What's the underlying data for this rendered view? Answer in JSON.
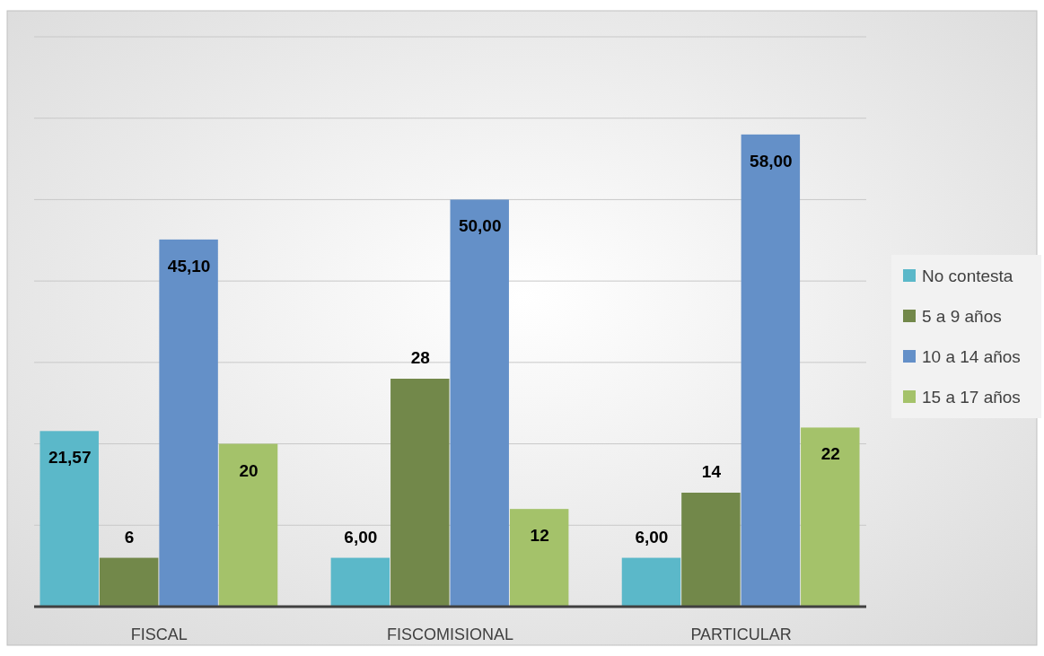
{
  "chart_data": {
    "type": "bar",
    "categories": [
      "FISCAL",
      "FISCOMISIONAL",
      "PARTICULAR"
    ],
    "series": [
      {
        "name": "No contesta",
        "color": "#5bb8c9",
        "values": [
          21.57,
          6.0,
          6.0
        ],
        "value_labels": [
          "21,57",
          "6,00",
          "6,00"
        ]
      },
      {
        "name": "5 a 9 años",
        "color": "#72884a",
        "values": [
          6,
          28,
          14
        ],
        "value_labels": [
          "6",
          "28",
          "14"
        ]
      },
      {
        "name": "10 a 14 años",
        "color": "#6490c8",
        "values": [
          45.1,
          50.0,
          58.0
        ],
        "value_labels": [
          "45,10",
          "50,00",
          "58,00"
        ]
      },
      {
        "name": "15 a 17 años",
        "color": "#a4c26a",
        "values": [
          20,
          12,
          22
        ],
        "value_labels": [
          "20",
          "12",
          "22"
        ]
      }
    ],
    "ylim": [
      0,
      70
    ],
    "yticks": [
      {
        "value": 0,
        "label": null
      },
      {
        "value": 10,
        "label": null
      },
      {
        "value": 20,
        "label": null
      },
      {
        "value": 30,
        "label": null
      },
      {
        "value": 40,
        "label": null
      },
      {
        "value": 50,
        "label": null
      },
      {
        "value": 60,
        "label": null
      },
      {
        "value": 70,
        "label": null
      }
    ],
    "tick_labels": "x",
    "grid": "y",
    "legend": "right"
  }
}
